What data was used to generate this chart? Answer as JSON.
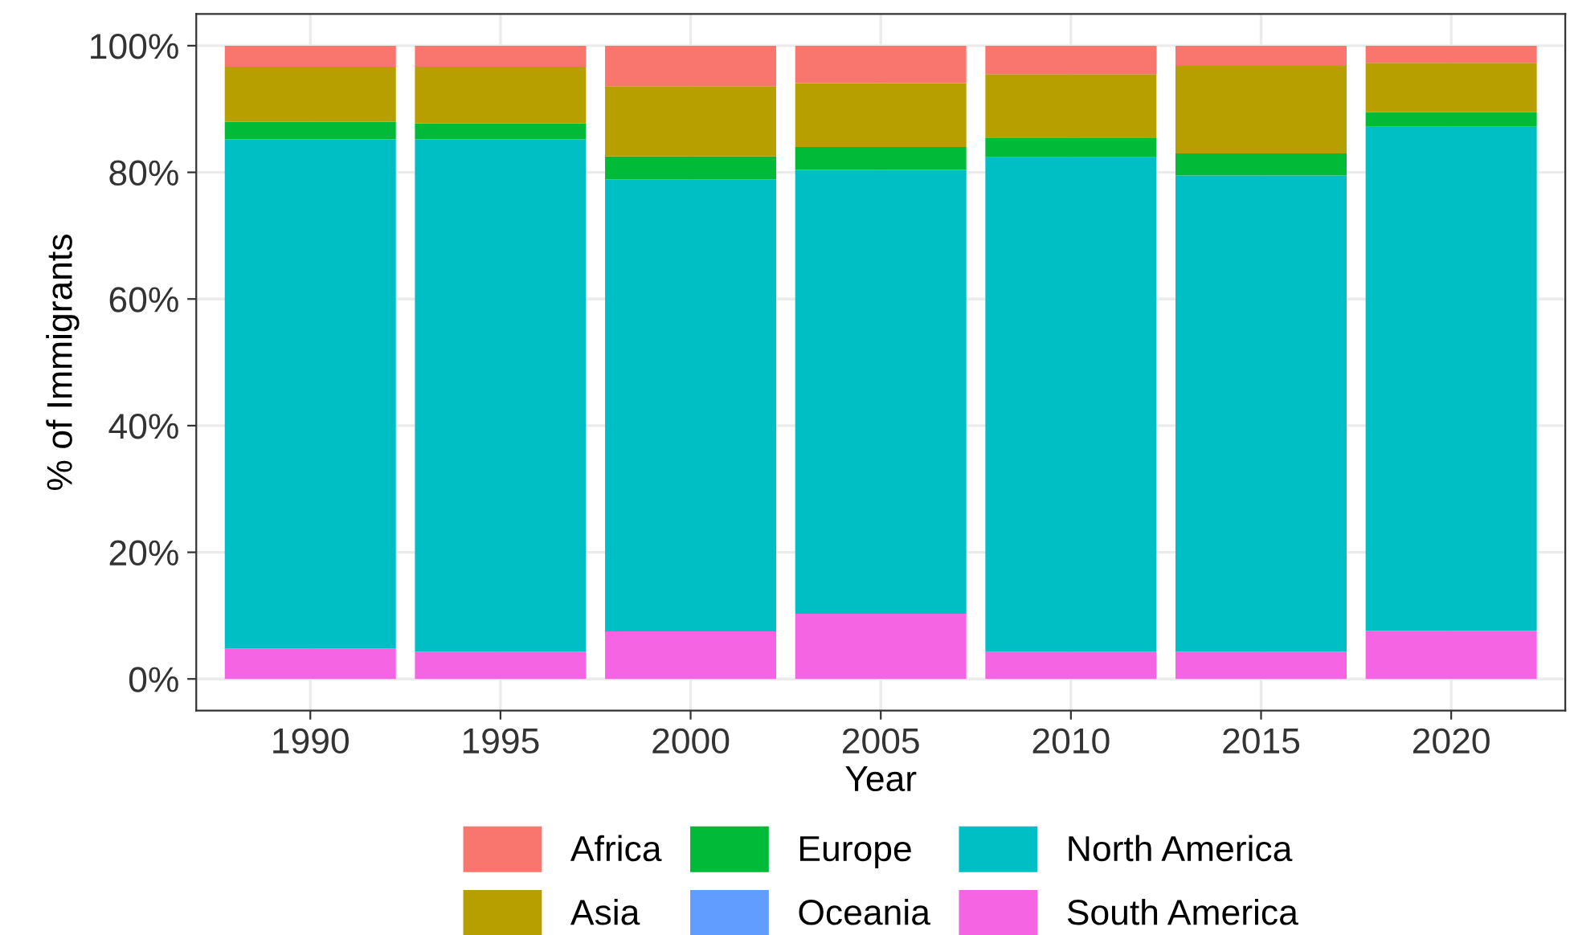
{
  "chart_data": {
    "type": "bar",
    "stacked": true,
    "xlabel": "Year",
    "ylabel": "% of Immigrants",
    "categories": [
      "1990",
      "1995",
      "2000",
      "2005",
      "2010",
      "2015",
      "2020"
    ],
    "series": [
      {
        "name": "South America",
        "color": "#f564e3",
        "values": [
          4.8,
          4.3,
          7.5,
          10.3,
          4.3,
          4.3,
          7.6
        ]
      },
      {
        "name": "North America",
        "color": "#00bfc4",
        "values": [
          80.4,
          80.9,
          71.4,
          70.1,
          78.1,
          75.2,
          79.6
        ]
      },
      {
        "name": "Oceania",
        "color": "#619cff",
        "values": [
          0,
          0,
          0,
          0,
          0,
          0,
          0
        ]
      },
      {
        "name": "Europe",
        "color": "#00ba38",
        "values": [
          2.8,
          2.5,
          3.6,
          3.6,
          3.1,
          3.5,
          2.3
        ]
      },
      {
        "name": "Asia",
        "color": "#b79f00",
        "values": [
          8.7,
          9.0,
          11.1,
          10.1,
          10.0,
          13.8,
          7.8
        ]
      },
      {
        "name": "Africa",
        "color": "#f8766d",
        "values": [
          3.3,
          3.3,
          6.4,
          5.9,
          4.5,
          3.2,
          2.7
        ]
      }
    ],
    "ylim": [
      -5,
      105
    ],
    "yticks": [
      {
        "value": 0,
        "label": "0%"
      },
      {
        "value": 20,
        "label": "20%"
      },
      {
        "value": 40,
        "label": "40%"
      },
      {
        "value": 60,
        "label": "60%"
      },
      {
        "value": 80,
        "label": "80%"
      },
      {
        "value": 100,
        "label": "100%"
      }
    ],
    "grid": true,
    "legend": "bottom"
  }
}
